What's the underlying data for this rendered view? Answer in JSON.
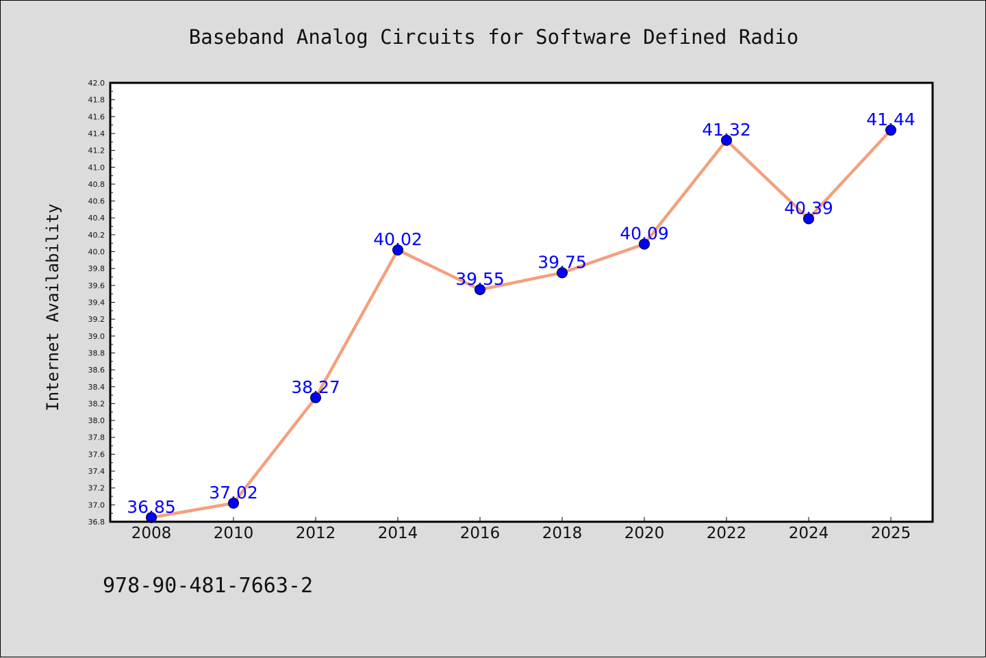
{
  "chart_data": {
    "type": "line",
    "title": "Baseband Analog Circuits for Software Defined Radio",
    "xlabel": "",
    "ylabel": "Internet Availability",
    "categories": [
      "2008",
      "2010",
      "2012",
      "2014",
      "2016",
      "2018",
      "2020",
      "2022",
      "2024",
      "2025"
    ],
    "series": [
      {
        "values": [
          36.85,
          37.02,
          38.27,
          40.02,
          39.55,
          39.75,
          40.09,
          41.32,
          40.39,
          41.44
        ],
        "line_color": "#f4a07c",
        "marker_color": "#0000ff"
      }
    ],
    "ylim": [
      36.8,
      42.0
    ],
    "y_ticks": [
      36.8,
      37.0,
      37.2,
      37.4,
      37.6,
      37.8,
      38.0,
      38.2,
      38.4,
      38.6,
      38.8,
      39.0,
      39.2,
      39.4,
      39.6,
      39.8,
      40.0,
      40.2,
      40.4,
      40.6,
      40.8,
      41.0,
      41.2,
      41.4,
      41.6,
      41.8,
      42.0
    ],
    "data_labels": [
      "36.85",
      "37.02",
      "38.27",
      "40.02",
      "39.55",
      "39.75",
      "40.09",
      "41.32",
      "40.39",
      "41.44"
    ],
    "data_label_color": "#0000ff",
    "grid": false,
    "legend": "none"
  },
  "footer": {
    "isbn": "978-90-481-7663-2"
  },
  "colors": {
    "background": "#dcdcdc",
    "plot_background": "#ffffff",
    "axis": "#000000"
  }
}
